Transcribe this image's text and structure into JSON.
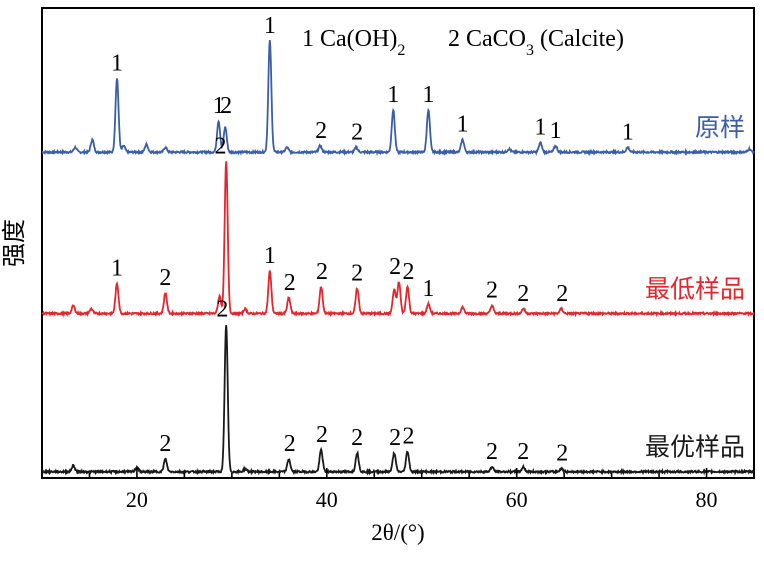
{
  "chart_data": {
    "type": "line",
    "title": "",
    "xlabel": "2θ/(°)",
    "ylabel": "强度",
    "xlim": [
      10,
      85
    ],
    "ylim": [
      0,
      3
    ],
    "x_ticks": [
      20,
      40,
      60,
      80
    ],
    "y_ticks": [],
    "grid": false,
    "legend": {
      "position": "top",
      "entries": [
        {
          "marker": "1",
          "label": "Ca(OH)₂"
        },
        {
          "marker": "2",
          "label": "CaCO₃ (Calcite)"
        }
      ]
    },
    "series": [
      {
        "name": "原样",
        "color": "#3a5ea8",
        "baseline": 2.08,
        "x": [
          10,
          13.5,
          15.3,
          17.9,
          18.6,
          21,
          23,
          28.6,
          29.3,
          34.0,
          35.8,
          39.3,
          43.1,
          47.0,
          50.7,
          54.3,
          59.2,
          62.5,
          64.1,
          71.7,
          75,
          80,
          84.5
        ],
        "y": [
          2.08,
          2.11,
          2.16,
          2.55,
          2.12,
          2.13,
          2.11,
          2.28,
          2.24,
          2.79,
          2.11,
          2.12,
          2.11,
          2.35,
          2.35,
          2.16,
          2.1,
          2.14,
          2.12,
          2.11,
          2.09,
          2.09,
          2.1
        ],
        "peak_labels": [
          {
            "x": 17.9,
            "label": "1"
          },
          {
            "x": 28.6,
            "label": "1"
          },
          {
            "x": 29.4,
            "label": "2"
          },
          {
            "x": 34.0,
            "label": "1"
          },
          {
            "x": 39.4,
            "label": "2"
          },
          {
            "x": 43.2,
            "label": "2"
          },
          {
            "x": 47.0,
            "label": "1"
          },
          {
            "x": 50.7,
            "label": "1"
          },
          {
            "x": 54.3,
            "label": "1"
          },
          {
            "x": 62.5,
            "label": "1"
          },
          {
            "x": 64.1,
            "label": "1"
          },
          {
            "x": 71.7,
            "label": "1"
          }
        ]
      },
      {
        "name": "最低样品",
        "color": "#e0282e",
        "baseline": 1.05,
        "x": [
          10,
          13.3,
          15.2,
          17.9,
          23.0,
          28.7,
          29.4,
          31.4,
          34.0,
          36.0,
          39.4,
          43.2,
          47.1,
          47.6,
          48.5,
          50.7,
          54.3,
          57.4,
          60.7,
          64.7,
          70,
          80,
          84.5
        ],
        "y": [
          1.05,
          1.1,
          1.08,
          1.24,
          1.18,
          1.16,
          2.02,
          1.08,
          1.32,
          1.15,
          1.22,
          1.21,
          1.2,
          1.25,
          1.22,
          1.11,
          1.09,
          1.1,
          1.08,
          1.08,
          1.06,
          1.06,
          1.06
        ],
        "peak_labels": [
          {
            "x": 17.9,
            "label": "1"
          },
          {
            "x": 23.0,
            "label": "2"
          },
          {
            "x": 28.8,
            "label": "2"
          },
          {
            "x": 34.0,
            "label": "1"
          },
          {
            "x": 36.1,
            "label": "2"
          },
          {
            "x": 39.5,
            "label": "2"
          },
          {
            "x": 43.2,
            "label": "2"
          },
          {
            "x": 47.2,
            "label": "2"
          },
          {
            "x": 48.6,
            "label": "2"
          },
          {
            "x": 50.7,
            "label": "1"
          },
          {
            "x": 57.4,
            "label": "2"
          },
          {
            "x": 60.7,
            "label": "2"
          },
          {
            "x": 64.8,
            "label": "2"
          }
        ]
      },
      {
        "name": "最优样品",
        "color": "#1a1a1a",
        "baseline": 0.04,
        "x": [
          10,
          13.3,
          20,
          23.0,
          29.4,
          31.4,
          36.0,
          39.4,
          43.2,
          47.1,
          48.5,
          57.4,
          60.7,
          64.7,
          70,
          80,
          84.5
        ],
        "y": [
          0.04,
          0.08,
          0.07,
          0.12,
          0.98,
          0.06,
          0.12,
          0.18,
          0.16,
          0.16,
          0.17,
          0.07,
          0.07,
          0.06,
          0.05,
          0.05,
          0.05
        ],
        "peak_labels": [
          {
            "x": 23.0,
            "label": "2"
          },
          {
            "x": 29.0,
            "label": "2"
          },
          {
            "x": 36.1,
            "label": "2"
          },
          {
            "x": 39.5,
            "label": "2"
          },
          {
            "x": 43.2,
            "label": "2"
          },
          {
            "x": 47.2,
            "label": "2"
          },
          {
            "x": 48.6,
            "label": "2"
          },
          {
            "x": 57.4,
            "label": "2"
          },
          {
            "x": 60.7,
            "label": "2"
          },
          {
            "x": 64.8,
            "label": "2"
          }
        ]
      }
    ]
  }
}
